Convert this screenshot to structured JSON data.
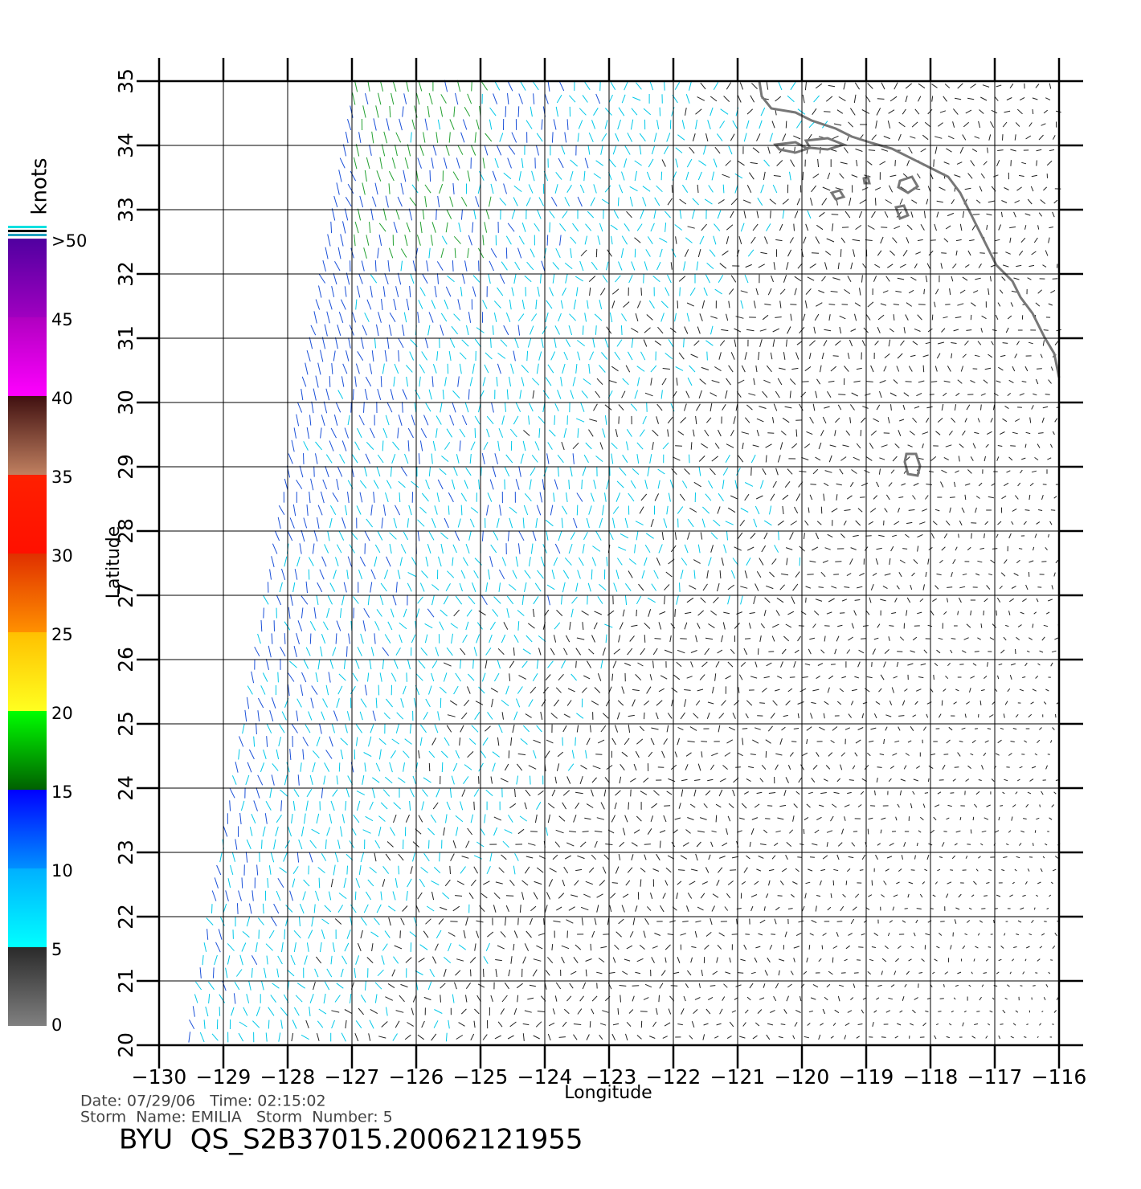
{
  "chart_data": {
    "type": "wind-vectors",
    "xlabel": "Longitude",
    "ylabel": "Latitude",
    "xlim": [
      -130,
      -116
    ],
    "ylim": [
      20,
      35
    ],
    "xticks": [
      {
        "value": -130,
        "label": "−130"
      },
      {
        "value": -129,
        "label": "−129"
      },
      {
        "value": -128,
        "label": "−128"
      },
      {
        "value": -127,
        "label": "−127"
      },
      {
        "value": -126,
        "label": "−126"
      },
      {
        "value": -125,
        "label": "−125"
      },
      {
        "value": -124,
        "label": "−124"
      },
      {
        "value": -123,
        "label": "−123"
      },
      {
        "value": -122,
        "label": "−122"
      },
      {
        "value": -121,
        "label": "−121"
      },
      {
        "value": -120,
        "label": "−120"
      },
      {
        "value": -119,
        "label": "−119"
      },
      {
        "value": -118,
        "label": "−118"
      },
      {
        "value": -117,
        "label": "−117"
      },
      {
        "value": -116,
        "label": "−116"
      }
    ],
    "yticks": [
      20,
      21,
      22,
      23,
      24,
      25,
      26,
      27,
      28,
      29,
      30,
      31,
      32,
      33,
      34,
      35
    ],
    "grid": true,
    "colorbar": {
      "title": "knots",
      "lim": [
        0,
        50
      ],
      "ticks": [
        0,
        5,
        10,
        15,
        20,
        25,
        30,
        35,
        40,
        45,
        {
          "value": 50,
          "label": ">50"
        }
      ],
      "colors": [
        [
          "#808080",
          "#2a2a2a"
        ],
        [
          "#00ffff",
          "#00b0ff"
        ],
        [
          "#0090ff",
          "#0000ff"
        ],
        [
          "#006000",
          "#00ff00"
        ],
        [
          "#ffff20",
          "#ffc000"
        ],
        [
          "#ff9000",
          "#e03000"
        ],
        [
          "#ff1000",
          "#ff2000"
        ],
        [
          "#c08060",
          "#401010"
        ],
        [
          "#ff00ff",
          "#b000c0"
        ],
        [
          "#a000c0",
          "#5000a0"
        ]
      ]
    }
  },
  "footer": {
    "line1": "Date: 07/29/06   Time: 02:15:02",
    "line2": "Storm  Name: EMILIA   Storm  Number: 5",
    "title": "BYU  QS_S2B37015.20062121955"
  }
}
